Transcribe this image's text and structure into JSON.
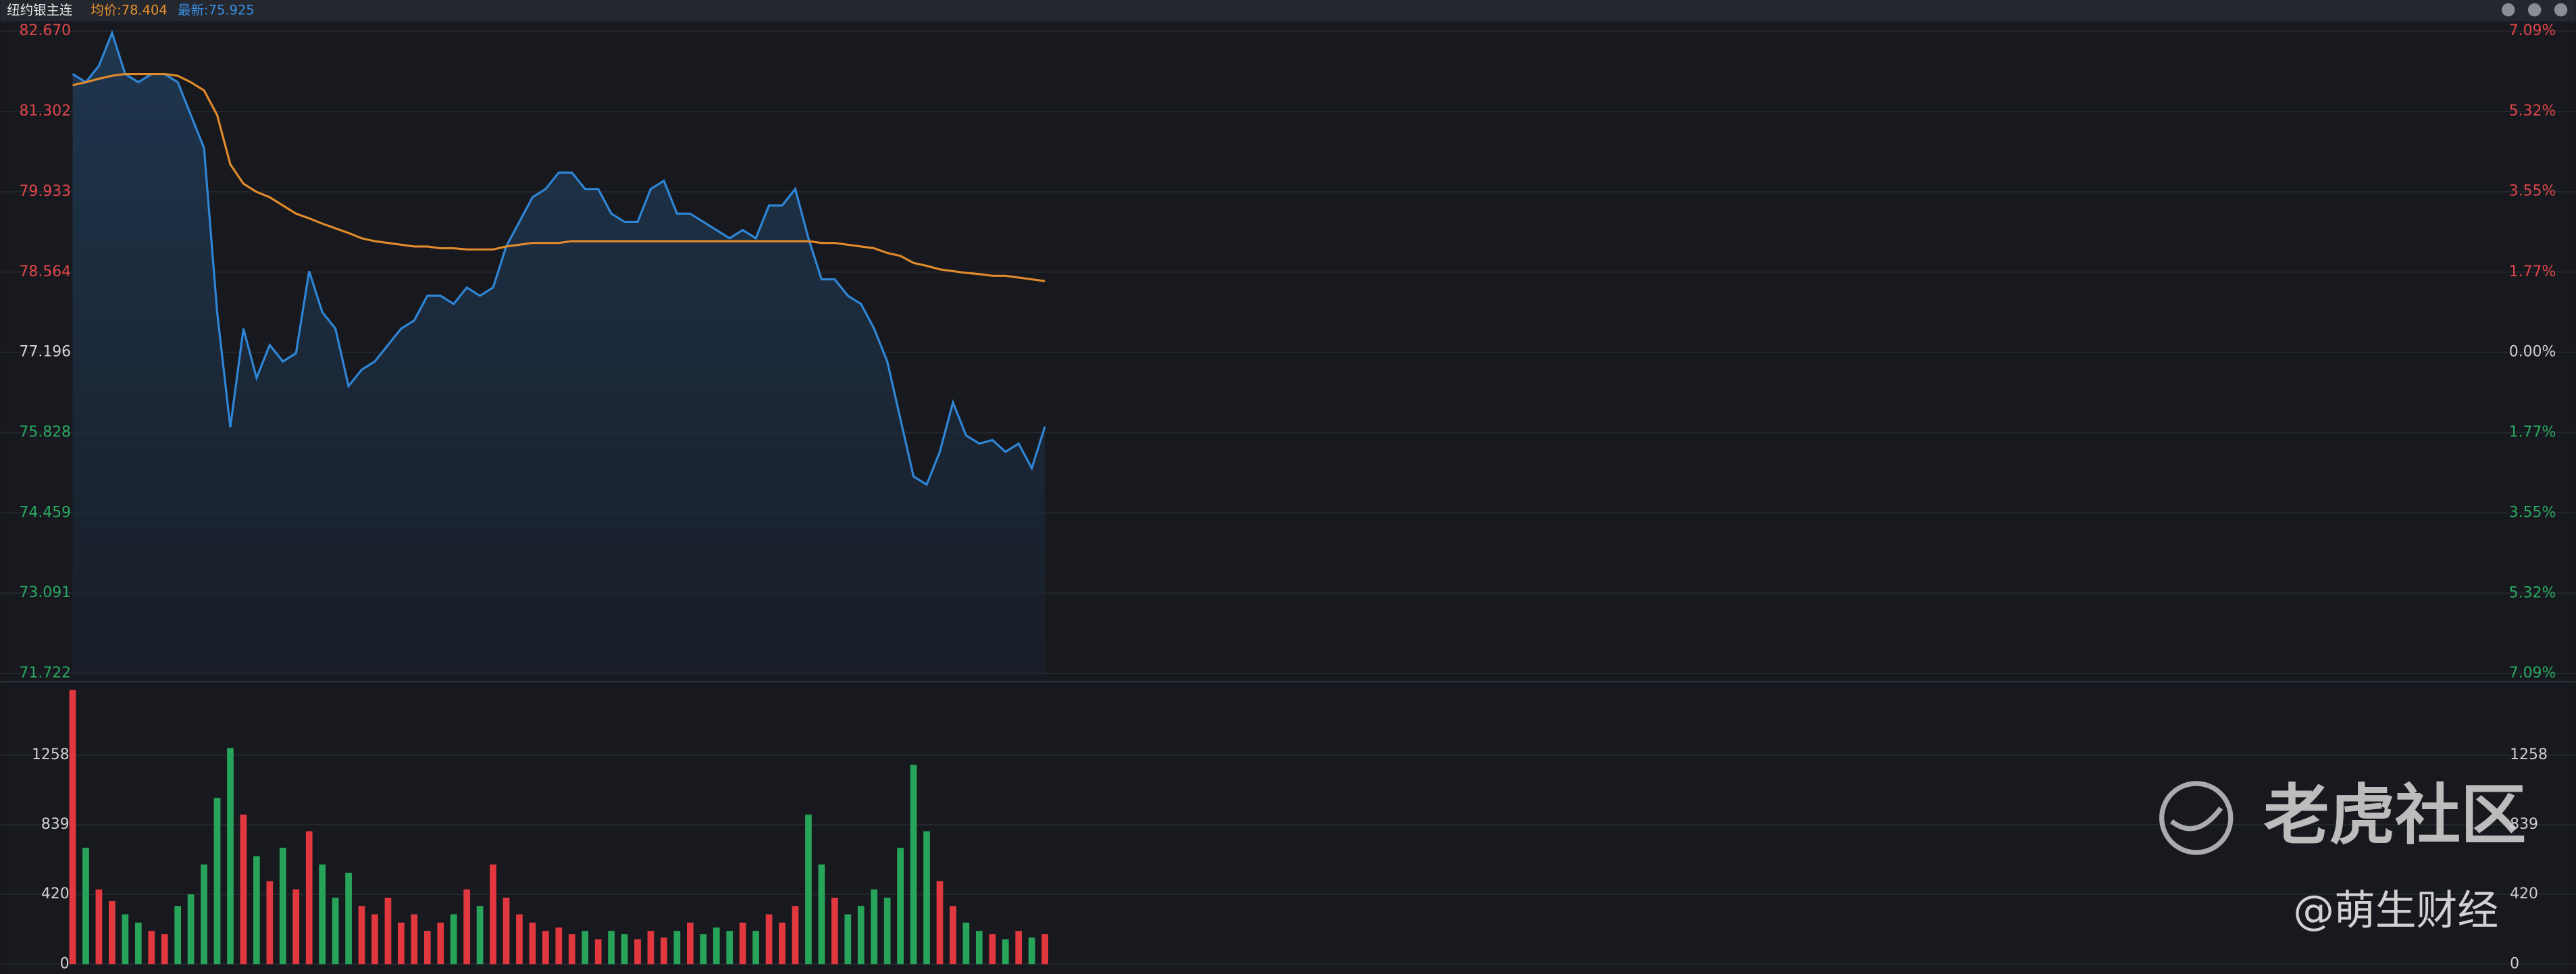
{
  "chart_data": [
    {
      "type": "line",
      "title": "纽约银主连",
      "annotations": [
        {
          "text": "均价:78.404",
          "color": "#e8912d"
        },
        {
          "text": "最新:75.925",
          "color": "#3a8ee0"
        }
      ],
      "series": [
        {
          "color": "#2f86d6",
          "area": true,
          "values": [
            81.94,
            81.8,
            82.08,
            82.64,
            81.94,
            81.8,
            81.94,
            81.94,
            81.8,
            81.24,
            80.68,
            77.88,
            75.92,
            77.6,
            76.76,
            77.32,
            77.04,
            77.18,
            78.58,
            77.88,
            77.6,
            76.62,
            76.9,
            77.04,
            77.32,
            77.6,
            77.74,
            78.16,
            78.16,
            78.02,
            78.3,
            78.16,
            78.3,
            79.0,
            79.42,
            79.84,
            79.98,
            80.26,
            80.26,
            79.98,
            79.98,
            79.56,
            79.42,
            79.42,
            79.98,
            80.12,
            79.56,
            79.56,
            79.42,
            79.28,
            79.14,
            79.28,
            79.14,
            79.7,
            79.7,
            79.98,
            79.14,
            78.44,
            78.44,
            78.16,
            78.02,
            77.6,
            77.04,
            76.06,
            75.08,
            74.94,
            75.5,
            76.34,
            75.78,
            75.64,
            75.7,
            75.5,
            75.64,
            75.22,
            75.93
          ]
        },
        {
          "color": "#e08a2c",
          "area": false,
          "values": [
            81.75,
            81.8,
            81.86,
            81.91,
            81.94,
            81.94,
            81.94,
            81.94,
            81.91,
            81.8,
            81.66,
            81.24,
            80.4,
            80.07,
            79.93,
            79.84,
            79.7,
            79.56,
            79.48,
            79.39,
            79.31,
            79.23,
            79.14,
            79.09,
            79.06,
            79.03,
            79.0,
            79.0,
            78.97,
            78.97,
            78.95,
            78.95,
            78.95,
            79.0,
            79.03,
            79.06,
            79.06,
            79.06,
            79.09,
            79.09,
            79.09,
            79.09,
            79.09,
            79.09,
            79.09,
            79.09,
            79.09,
            79.09,
            79.09,
            79.09,
            79.09,
            79.09,
            79.09,
            79.09,
            79.09,
            79.09,
            79.09,
            79.06,
            79.06,
            79.03,
            79.0,
            78.97,
            78.89,
            78.84,
            78.72,
            78.67,
            78.61,
            78.58,
            78.55,
            78.53,
            78.5,
            78.5,
            78.47,
            78.44,
            78.41
          ]
        }
      ],
      "ylim": [
        71.722,
        82.67
      ],
      "yticks": [
        {
          "value": 82.67,
          "label": "82.670"
        },
        81.302,
        79.933,
        78.564,
        77.196,
        75.828,
        74.459,
        73.091,
        71.722
      ],
      "y2lim": [
        -7.09,
        7.09
      ],
      "y2ticks": [
        {
          "value": 7.09,
          "label": "7.09%"
        },
        {
          "value": 5.32,
          "label": "5.32%"
        },
        {
          "value": 3.55,
          "label": "3.55%"
        },
        {
          "value": 1.77,
          "label": "1.77%"
        },
        {
          "value": 0,
          "label": "0.00%"
        },
        {
          "value": -1.77,
          "label": "1.77%"
        },
        {
          "value": -3.55,
          "label": "3.55%"
        },
        {
          "value": -5.32,
          "label": "5.32%"
        },
        {
          "value": -7.09,
          "label": "7.09%"
        }
      ],
      "up_color": "#e0464a",
      "down_color": "#2aa860",
      "flat_color": "#d0d0d0",
      "grid": true
    },
    {
      "type": "bar",
      "values": [
        1650,
        700,
        450,
        380,
        300,
        250,
        200,
        180,
        350,
        420,
        600,
        1000,
        1300,
        900,
        650,
        500,
        700,
        450,
        800,
        600,
        400,
        550,
        350,
        300,
        400,
        250,
        300,
        200,
        250,
        300,
        450,
        350,
        600,
        400,
        300,
        250,
        200,
        220,
        180,
        200,
        150,
        200,
        180,
        150,
        200,
        160,
        200,
        250,
        180,
        220,
        200,
        250,
        200,
        300,
        250,
        350,
        900,
        600,
        400,
        300,
        350,
        450,
        400,
        700,
        1200,
        800,
        500,
        350,
        250,
        200,
        180,
        150,
        200,
        160,
        180
      ],
      "ylim": [
        0,
        1700
      ],
      "yticks": [
        0,
        420,
        839,
        1258
      ],
      "up_color": "#e0383e",
      "down_color": "#27a35a",
      "label_color": "#d0d0d0",
      "grid": true
    }
  ],
  "watermark": {
    "brand": "老虎社区",
    "author": "@萌生财经"
  }
}
